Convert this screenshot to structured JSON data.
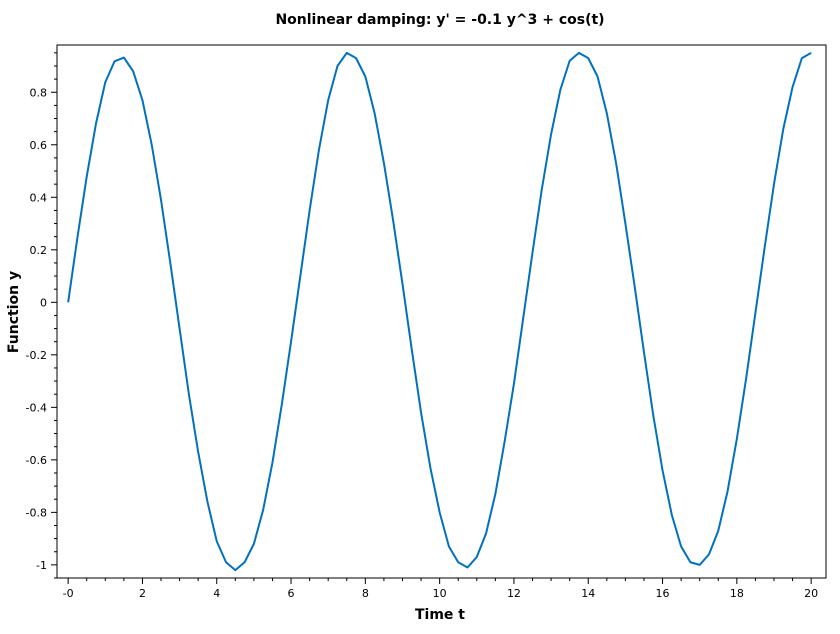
{
  "chart_data": {
    "type": "line",
    "title": "Nonlinear damping: y' = -0.1 y^3 + cos(t)",
    "xlabel": "Time t",
    "ylabel": "Function y",
    "xlim": [
      -0.3,
      20.4
    ],
    "ylim": [
      -1.05,
      0.98
    ],
    "grid": false,
    "x_ticks": [
      0,
      2,
      4,
      6,
      8,
      10,
      12,
      14,
      16,
      18,
      20
    ],
    "x_tick_labels": [
      "-0",
      "2",
      "4",
      "6",
      "8",
      "10",
      "12",
      "14",
      "16",
      "18",
      "20"
    ],
    "y_ticks": [
      -1,
      -0.8,
      -0.6,
      -0.4,
      -0.2,
      0,
      0.2,
      0.4,
      0.6,
      0.8
    ],
    "y_tick_labels": [
      "-1",
      "-0.8",
      "-0.6",
      "-0.4",
      "-0.2",
      "0",
      "0.2",
      "0.4",
      "0.6",
      "0.8"
    ],
    "line_color": "#0072BD",
    "series": [
      {
        "x": [
          0,
          0.25,
          0.5,
          0.75,
          1.0,
          1.25,
          1.5,
          1.75,
          2.0,
          2.25,
          2.5,
          2.75,
          3.0,
          3.25,
          3.5,
          3.75,
          4.0,
          4.25,
          4.5,
          4.75,
          5.0,
          5.25,
          5.5,
          5.75,
          6.0,
          6.25,
          6.5,
          6.75,
          7.0,
          7.25,
          7.5,
          7.75,
          8.0,
          8.25,
          8.5,
          8.75,
          9.0,
          9.25,
          9.5,
          9.75,
          10.0,
          10.25,
          10.5,
          10.75,
          11.0,
          11.25,
          11.5,
          11.75,
          12.0,
          12.25,
          12.5,
          12.75,
          13.0,
          13.25,
          13.5,
          13.75,
          14.0,
          14.25,
          14.5,
          14.75,
          15.0,
          15.25,
          15.5,
          15.75,
          16.0,
          16.25,
          16.5,
          16.75,
          17.0,
          17.25,
          17.5,
          17.75,
          18.0,
          18.25,
          18.5,
          18.75,
          19.0,
          19.25,
          19.5,
          19.75,
          20.0
        ],
        "y": [
          0.0,
          0.247,
          0.479,
          0.681,
          0.838,
          0.918,
          0.932,
          0.88,
          0.77,
          0.6,
          0.39,
          0.15,
          -0.1,
          -0.35,
          -0.57,
          -0.76,
          -0.91,
          -0.99,
          -1.02,
          -0.99,
          -0.92,
          -0.79,
          -0.61,
          -0.39,
          -0.15,
          0.1,
          0.35,
          0.58,
          0.77,
          0.9,
          0.95,
          0.93,
          0.86,
          0.72,
          0.53,
          0.31,
          0.07,
          -0.18,
          -0.42,
          -0.63,
          -0.8,
          -0.93,
          -0.99,
          -1.01,
          -0.97,
          -0.88,
          -0.73,
          -0.53,
          -0.31,
          -0.06,
          0.19,
          0.43,
          0.64,
          0.81,
          0.92,
          0.95,
          0.93,
          0.86,
          0.72,
          0.53,
          0.3,
          0.06,
          -0.19,
          -0.43,
          -0.64,
          -0.81,
          -0.93,
          -0.99,
          -1.0,
          -0.96,
          -0.87,
          -0.72,
          -0.52,
          -0.29,
          -0.04,
          0.21,
          0.45,
          0.66,
          0.82,
          0.93,
          0.95
        ]
      }
    ]
  }
}
